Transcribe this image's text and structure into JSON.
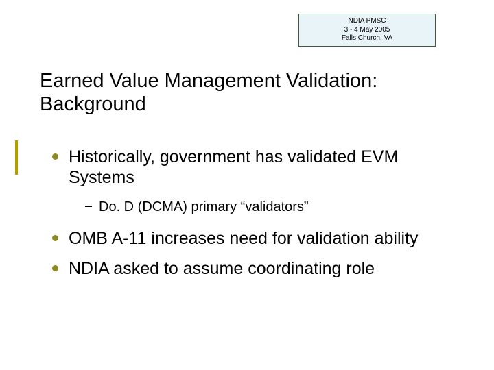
{
  "colors": {
    "header_bg": "#e8f4f8",
    "header_border": "#3a5a3a",
    "accent_bar": "#b0a000",
    "bullet": "#8a8a20",
    "text": "#000000",
    "background": "#ffffff"
  },
  "header": {
    "line1": "NDIA PMSC",
    "line2": "3 - 4  May 2005",
    "line3": "Falls Church, VA"
  },
  "title": {
    "line1": "Earned Value Management Validation:",
    "line2": "Background"
  },
  "bullets": [
    {
      "text": "Historically, government has validated EVM Systems",
      "sub": [
        {
          "text": "Do. D (DCMA) primary “validators”"
        }
      ]
    },
    {
      "text": "OMB A-11 increases need for validation ability",
      "sub": []
    },
    {
      "text": "NDIA asked to assume coordinating role",
      "sub": []
    }
  ]
}
